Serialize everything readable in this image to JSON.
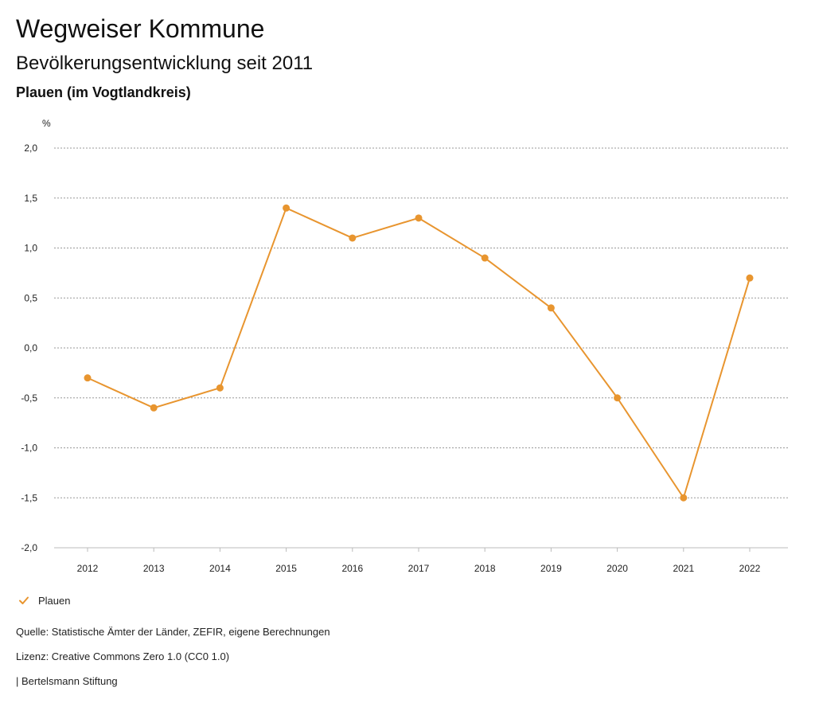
{
  "header": {
    "title": "Wegweiser Kommune",
    "subtitle": "Bevölkerungsentwicklung seit 2011",
    "region": "Plauen (im Vogtlandkreis)"
  },
  "chart_data": {
    "type": "line",
    "title": "",
    "xlabel": "",
    "ylabel": "%",
    "x": [
      "2012",
      "2013",
      "2014",
      "2015",
      "2016",
      "2017",
      "2018",
      "2019",
      "2020",
      "2021",
      "2022"
    ],
    "series": [
      {
        "name": "Plauen",
        "values": [
          -0.3,
          -0.6,
          -0.4,
          1.4,
          1.1,
          1.3,
          0.9,
          0.4,
          -0.5,
          -1.5,
          0.7
        ],
        "color": "#e8952f"
      }
    ],
    "ylim": [
      -2.0,
      2.0
    ],
    "yticks": [
      2.0,
      1.5,
      1.0,
      0.5,
      0.0,
      -0.5,
      -1.0,
      -1.5,
      -2.0
    ],
    "ytick_labels": [
      "2,0",
      "1,5",
      "1,0",
      "0,5",
      "0,0",
      "-0,5",
      "-1,0",
      "-1,5",
      "-2,0"
    ],
    "grid": true,
    "grid_color": "#999999",
    "legend_position": "bottom-left"
  },
  "legend": {
    "items": [
      {
        "label": "Plauen",
        "icon": "check-mark-icon",
        "color": "#e8952f"
      }
    ]
  },
  "footer": {
    "source": "Quelle: Statistische Ämter der Länder, ZEFIR, eigene Berechnungen",
    "license": "Lizenz: Creative Commons Zero 1.0 (CC0 1.0)",
    "publisher": "| Bertelsmann Stiftung"
  }
}
